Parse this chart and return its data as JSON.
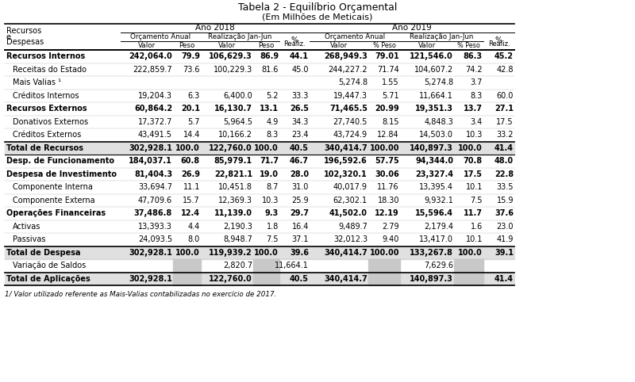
{
  "title1": "Tabela 2 - Equilíbrio Orçamental",
  "title2": "(Em Milhões de Meticais)",
  "rows": [
    {
      "label": "Recursos Internos",
      "bold": true,
      "indent": false,
      "separator_before": true,
      "a18_ov": "242,064.0",
      "a18_op": "79.9",
      "a18_rv": "106,629.3",
      "a18_rp": "86.9",
      "a18_pct": "44.1",
      "a19_ov": "268,949.3",
      "a19_op": "79.01",
      "a19_rv": "121,546.0",
      "a19_rp": "86.3",
      "a19_pct": "45.2"
    },
    {
      "label": "Receitas do Estado",
      "bold": false,
      "indent": true,
      "separator_before": false,
      "a18_ov": "222,859.7",
      "a18_op": "73.6",
      "a18_rv": "100,229.3",
      "a18_rp": "81.6",
      "a18_pct": "45.0",
      "a19_ov": "244,227.2",
      "a19_op": "71.74",
      "a19_rv": "104,607.2",
      "a19_rp": "74.2",
      "a19_pct": "42.8"
    },
    {
      "label": "Mais Valias ¹",
      "bold": false,
      "indent": true,
      "separator_before": false,
      "a18_ov": "",
      "a18_op": "",
      "a18_rv": "",
      "a18_rp": "",
      "a18_pct": "",
      "a19_ov": "5,274.8",
      "a19_op": "1.55",
      "a19_rv": "5,274.8",
      "a19_rp": "3.7",
      "a19_pct": ""
    },
    {
      "label": "Créditos Internos",
      "bold": false,
      "indent": true,
      "separator_before": false,
      "a18_ov": "19,204.3",
      "a18_op": "6.3",
      "a18_rv": "6,400.0",
      "a18_rp": "5.2",
      "a18_pct": "33.3",
      "a19_ov": "19,447.3",
      "a19_op": "5.71",
      "a19_rv": "11,664.1",
      "a19_rp": "8.3",
      "a19_pct": "60.0"
    },
    {
      "label": "Recursos Externos",
      "bold": true,
      "indent": false,
      "separator_before": false,
      "a18_ov": "60,864.2",
      "a18_op": "20.1",
      "a18_rv": "16,130.7",
      "a18_rp": "13.1",
      "a18_pct": "26.5",
      "a19_ov": "71,465.5",
      "a19_op": "20.99",
      "a19_rv": "19,351.3",
      "a19_rp": "13.7",
      "a19_pct": "27.1"
    },
    {
      "label": "Donativos Externos",
      "bold": false,
      "indent": true,
      "separator_before": false,
      "a18_ov": "17,372.7",
      "a18_op": "5.7",
      "a18_rv": "5,964.5",
      "a18_rp": "4.9",
      "a18_pct": "34.3",
      "a19_ov": "27,740.5",
      "a19_op": "8.15",
      "a19_rv": "4,848.3",
      "a19_rp": "3.4",
      "a19_pct": "17.5"
    },
    {
      "label": "Créditos Externos",
      "bold": false,
      "indent": true,
      "separator_before": false,
      "a18_ov": "43,491.5",
      "a18_op": "14.4",
      "a18_rv": "10,166.2",
      "a18_rp": "8.3",
      "a18_pct": "23.4",
      "a19_ov": "43,724.9",
      "a19_op": "12.84",
      "a19_rv": "14,503.0",
      "a19_rp": "10.3",
      "a19_pct": "33.2"
    },
    {
      "label": "Total de Recursos",
      "bold": true,
      "indent": false,
      "total": true,
      "separator_before": true,
      "a18_ov": "302,928.1",
      "a18_op": "100.0",
      "a18_rv": "122,760.0",
      "a18_rp": "100.0",
      "a18_pct": "40.5",
      "a19_ov": "340,414.7",
      "a19_op": "100.00",
      "a19_rv": "140,897.3",
      "a19_rp": "100.0",
      "a19_pct": "41.4"
    },
    {
      "label": "Desp. de Funcionamento",
      "bold": true,
      "indent": false,
      "separator_before": true,
      "a18_ov": "184,037.1",
      "a18_op": "60.8",
      "a18_rv": "85,979.1",
      "a18_rp": "71.7",
      "a18_pct": "46.7",
      "a19_ov": "196,592.6",
      "a19_op": "57.75",
      "a19_rv": "94,344.0",
      "a19_rp": "70.8",
      "a19_pct": "48.0"
    },
    {
      "label": "Despesa de Investimento",
      "bold": true,
      "indent": false,
      "separator_before": false,
      "a18_ov": "81,404.3",
      "a18_op": "26.9",
      "a18_rv": "22,821.1",
      "a18_rp": "19.0",
      "a18_pct": "28.0",
      "a19_ov": "102,320.1",
      "a19_op": "30.06",
      "a19_rv": "23,327.4",
      "a19_rp": "17.5",
      "a19_pct": "22.8"
    },
    {
      "label": "Componente Interna",
      "bold": false,
      "indent": true,
      "separator_before": false,
      "a18_ov": "33,694.7",
      "a18_op": "11.1",
      "a18_rv": "10,451.8",
      "a18_rp": "8.7",
      "a18_pct": "31.0",
      "a19_ov": "40,017.9",
      "a19_op": "11.76",
      "a19_rv": "13,395.4",
      "a19_rp": "10.1",
      "a19_pct": "33.5"
    },
    {
      "label": "Componente Externa",
      "bold": false,
      "indent": true,
      "separator_before": false,
      "a18_ov": "47,709.6",
      "a18_op": "15.7",
      "a18_rv": "12,369.3",
      "a18_rp": "10.3",
      "a18_pct": "25.9",
      "a19_ov": "62,302.1",
      "a19_op": "18.30",
      "a19_rv": "9,932.1",
      "a19_rp": "7.5",
      "a19_pct": "15.9"
    },
    {
      "label": "Operações Financeiras",
      "bold": true,
      "indent": false,
      "separator_before": false,
      "a18_ov": "37,486.8",
      "a18_op": "12.4",
      "a18_rv": "11,139.0",
      "a18_rp": "9.3",
      "a18_pct": "29.7",
      "a19_ov": "41,502.0",
      "a19_op": "12.19",
      "a19_rv": "15,596.4",
      "a19_rp": "11.7",
      "a19_pct": "37.6"
    },
    {
      "label": "Activas",
      "bold": false,
      "indent": true,
      "separator_before": false,
      "a18_ov": "13,393.3",
      "a18_op": "4.4",
      "a18_rv": "2,190.3",
      "a18_rp": "1.8",
      "a18_pct": "16.4",
      "a19_ov": "9,489.7",
      "a19_op": "2.79",
      "a19_rv": "2,179.4",
      "a19_rp": "1.6",
      "a19_pct": "23.0"
    },
    {
      "label": "Passivas",
      "bold": false,
      "indent": true,
      "separator_before": false,
      "a18_ov": "24,093.5",
      "a18_op": "8.0",
      "a18_rv": "8,948.7",
      "a18_rp": "7.5",
      "a18_pct": "37.1",
      "a19_ov": "32,012.3",
      "a19_op": "9.40",
      "a19_rv": "13,417.0",
      "a19_rp": "10.1",
      "a19_pct": "41.9"
    },
    {
      "label": "Total de Despesa",
      "bold": true,
      "indent": false,
      "total": true,
      "separator_before": true,
      "a18_ov": "302,928.1",
      "a18_op": "100.0",
      "a18_rv": "119,939.2",
      "a18_rp": "100.0",
      "a18_pct": "39.6",
      "a19_ov": "340,414.7",
      "a19_op": "100.00",
      "a19_rv": "133,267.8",
      "a19_rp": "100.0",
      "a19_pct": "39.1"
    },
    {
      "label": "Variação de Saldos",
      "bold": false,
      "indent": true,
      "variacao": true,
      "separator_before": false,
      "a18_ov": "",
      "a18_op": "",
      "a18_rv": "2,820.7",
      "a18_rp": "",
      "a18_pct": "11,664.1",
      "a19_ov": "",
      "a19_op": "",
      "a19_rv": "7,629.6",
      "a19_rp": "",
      "a19_pct": ""
    },
    {
      "label": "Total de Aplicações",
      "bold": true,
      "indent": false,
      "total": true,
      "total_aplicacoes": true,
      "separator_before": true,
      "a18_ov": "302,928.1",
      "a18_op": "",
      "a18_rv": "122,760.0",
      "a18_rp": "",
      "a18_pct": "40.5",
      "a19_ov": "340,414.7",
      "a19_op": "",
      "a19_rv": "140,897.3",
      "a19_rp": "",
      "a19_pct": "41.4"
    }
  ],
  "footnote": "1/ Valor utilizado referente as Mais-Valias contabilizadas no exercício de 2017.",
  "col_x": {
    "label_l": 6,
    "label_r": 152,
    "a18_ov_l": 152,
    "a18_ov_r": 218,
    "a18_op_l": 218,
    "a18_op_r": 253,
    "a18_rv_l": 253,
    "a18_rv_r": 319,
    "a18_rp_l": 319,
    "a18_rp_r": 352,
    "a18_pct_l": 352,
    "a18_pct_r": 390,
    "a19_ov_l": 390,
    "a19_ov_r": 464,
    "a19_op_l": 464,
    "a19_op_r": 504,
    "a19_rv_l": 504,
    "a19_rv_r": 572,
    "a19_rp_l": 572,
    "a19_rp_r": 609,
    "a19_pct_l": 609,
    "a19_pct_r": 648
  }
}
